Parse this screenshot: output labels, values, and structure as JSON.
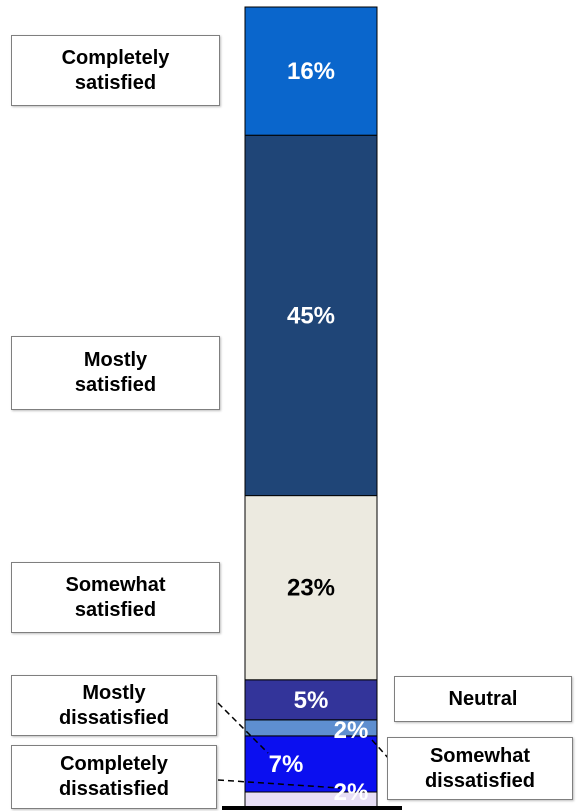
{
  "chart_data": {
    "type": "bar",
    "stacked": true,
    "categories": [
      ""
    ],
    "series": [
      {
        "name": "Completely dissatisfied",
        "value": 2,
        "label": "2%",
        "color": "#e7def5",
        "text_color": "#ffffff"
      },
      {
        "name": "Mostly dissatisfied",
        "value": 7,
        "label": "7%",
        "color": "#0b0ff0",
        "text_color": "#ffffff"
      },
      {
        "name": "Somewhat dissatisfied",
        "value": 2,
        "label": "2%",
        "color": "#5e8fd0",
        "text_color": "#ffffff"
      },
      {
        "name": "Neutral",
        "value": 5,
        "label": "5%",
        "color": "#33349a",
        "text_color": "#ffffff"
      },
      {
        "name": "Somewhat satisfied",
        "value": 23,
        "label": "23%",
        "color": "#eceae0",
        "text_color": "#000000"
      },
      {
        "name": "Mostly satisfied",
        "value": 45,
        "label": "45%",
        "color": "#1f4577",
        "text_color": "#ffffff"
      },
      {
        "name": "Completely satisfied",
        "value": 16,
        "label": "16%",
        "color": "#0a66cc",
        "text_color": "#ffffff"
      }
    ],
    "callouts": [
      {
        "text": "Completely\nsatisfied"
      },
      {
        "text": "Mostly\nsatisfied"
      },
      {
        "text": "Somewhat\nsatisfied"
      },
      {
        "text": "Mostly\ndissatisfied"
      },
      {
        "text": "Completely\ndissatisfied"
      },
      {
        "text": "Neutral"
      },
      {
        "text": "Somewhat\ndissatisfied"
      }
    ],
    "legend": "none",
    "grid": false
  }
}
